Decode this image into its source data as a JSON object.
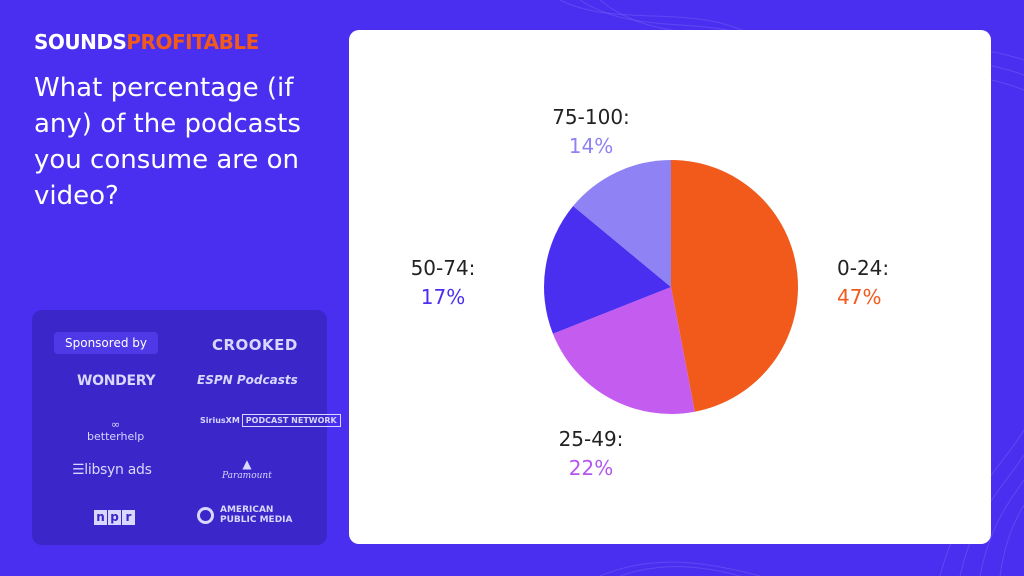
{
  "brand": {
    "word1": "SOUNDS",
    "word2": "PROFITABLE"
  },
  "question": "What percentage (if any) of the podcasts you consume are on video?",
  "sponsors": {
    "label": "Sponsored by",
    "logos": {
      "crooked": "CROOKED",
      "wondery": "WONDERY",
      "espn": "ESPN Podcasts",
      "betterhelp": "betterhelp",
      "siriusxm": "SiriusXM",
      "siriusxm_box": "PODCAST NETWORK",
      "libsyn": "libsyn ads",
      "paramount": "Paramount",
      "npr": [
        "n",
        "p",
        "r"
      ],
      "apm": "AMERICAN PUBLIC MEDIA"
    }
  },
  "colors": {
    "background": "#4b2ff0",
    "panel": "#3b26c9",
    "accent": "#f25a1b"
  },
  "chart_data": {
    "type": "pie",
    "categories": [
      "0-24:",
      "25-49:",
      "50-74:",
      "75-100:"
    ],
    "values": [
      47,
      22,
      17,
      14
    ],
    "value_labels": [
      "47%",
      "22%",
      "17%",
      "14%"
    ],
    "colors": [
      "#f25a1b",
      "#c45cf0",
      "#4b2ff0",
      "#8e82f4"
    ],
    "label_colors": [
      "#f25a1b",
      "#b455ee",
      "#4b2ff0",
      "#8e82f4"
    ],
    "start": "top, clockwise"
  }
}
